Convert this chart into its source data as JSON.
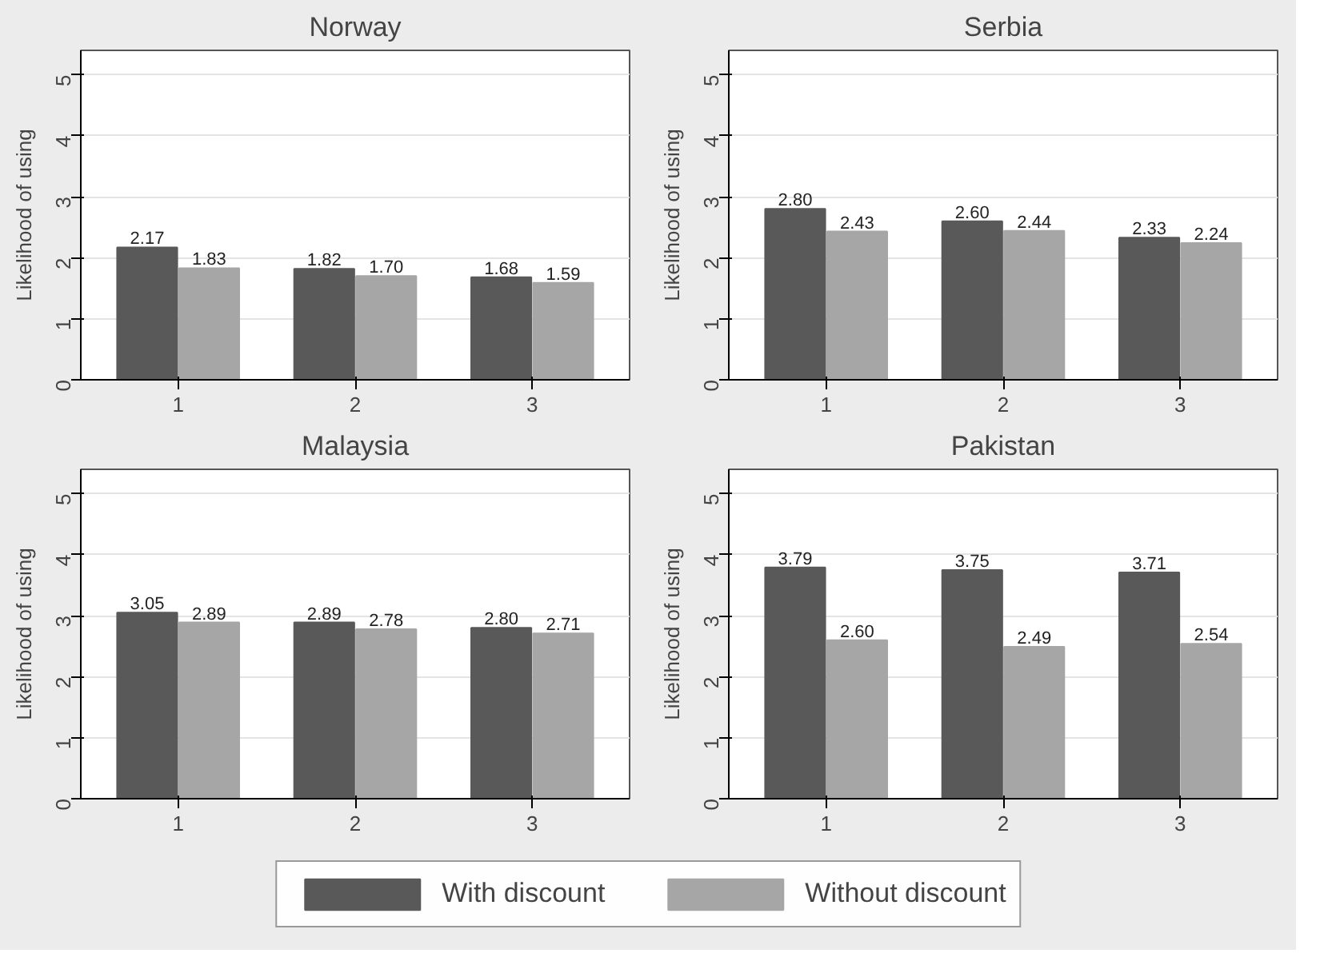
{
  "chart_data": [
    {
      "type": "bar",
      "title": "Norway",
      "ylabel": "Likelihood of using",
      "categories": [
        "1",
        "2",
        "3"
      ],
      "ylim": [
        0,
        5.4
      ],
      "yticks": [
        0,
        1,
        2,
        3,
        4,
        5
      ],
      "grid": "y",
      "series": [
        {
          "color": "#595959",
          "values": [
            2.17,
            1.82,
            1.68
          ],
          "value_labels": [
            "2.17",
            "1.82",
            "1.68"
          ]
        },
        {
          "color": "#a6a6a6",
          "values": [
            1.83,
            1.7,
            1.59
          ],
          "value_labels": [
            "1.83",
            "1.70",
            "1.59"
          ]
        }
      ]
    },
    {
      "type": "bar",
      "title": "Serbia",
      "ylabel": "Likelihood of using",
      "categories": [
        "1",
        "2",
        "3"
      ],
      "ylim": [
        0,
        5.4
      ],
      "yticks": [
        0,
        1,
        2,
        3,
        4,
        5
      ],
      "grid": "y",
      "series": [
        {
          "color": "#595959",
          "values": [
            2.8,
            2.6,
            2.33
          ],
          "value_labels": [
            "2.80",
            "2.60",
            "2.33"
          ]
        },
        {
          "color": "#a6a6a6",
          "values": [
            2.43,
            2.44,
            2.24
          ],
          "value_labels": [
            "2.43",
            "2.44",
            "2.24"
          ]
        }
      ]
    },
    {
      "type": "bar",
      "title": "Malaysia",
      "ylabel": "Likelihood of using",
      "categories": [
        "1",
        "2",
        "3"
      ],
      "ylim": [
        0,
        5.4
      ],
      "yticks": [
        0,
        1,
        2,
        3,
        4,
        5
      ],
      "grid": "y",
      "series": [
        {
          "color": "#595959",
          "values": [
            3.05,
            2.89,
            2.8
          ],
          "value_labels": [
            "3.05",
            "2.89",
            "2.80"
          ]
        },
        {
          "color": "#a6a6a6",
          "values": [
            2.89,
            2.78,
            2.71
          ],
          "value_labels": [
            "2.89",
            "2.78",
            "2.71"
          ]
        }
      ]
    },
    {
      "type": "bar",
      "title": "Pakistan",
      "ylabel": "Likelihood of using",
      "categories": [
        "1",
        "2",
        "3"
      ],
      "ylim": [
        0,
        5.4
      ],
      "yticks": [
        0,
        1,
        2,
        3,
        4,
        5
      ],
      "grid": "y",
      "legend": "bottom",
      "series": [
        {
          "name": "With discount",
          "color": "#595959",
          "values": [
            3.79,
            3.75,
            3.71
          ],
          "value_labels": [
            "3.79",
            "3.75",
            "3.71"
          ]
        },
        {
          "name": "Without discount",
          "color": "#a6a6a6",
          "values": [
            2.6,
            2.49,
            2.54
          ],
          "value_labels": [
            "2.60",
            "2.49",
            "2.54"
          ]
        }
      ]
    }
  ]
}
